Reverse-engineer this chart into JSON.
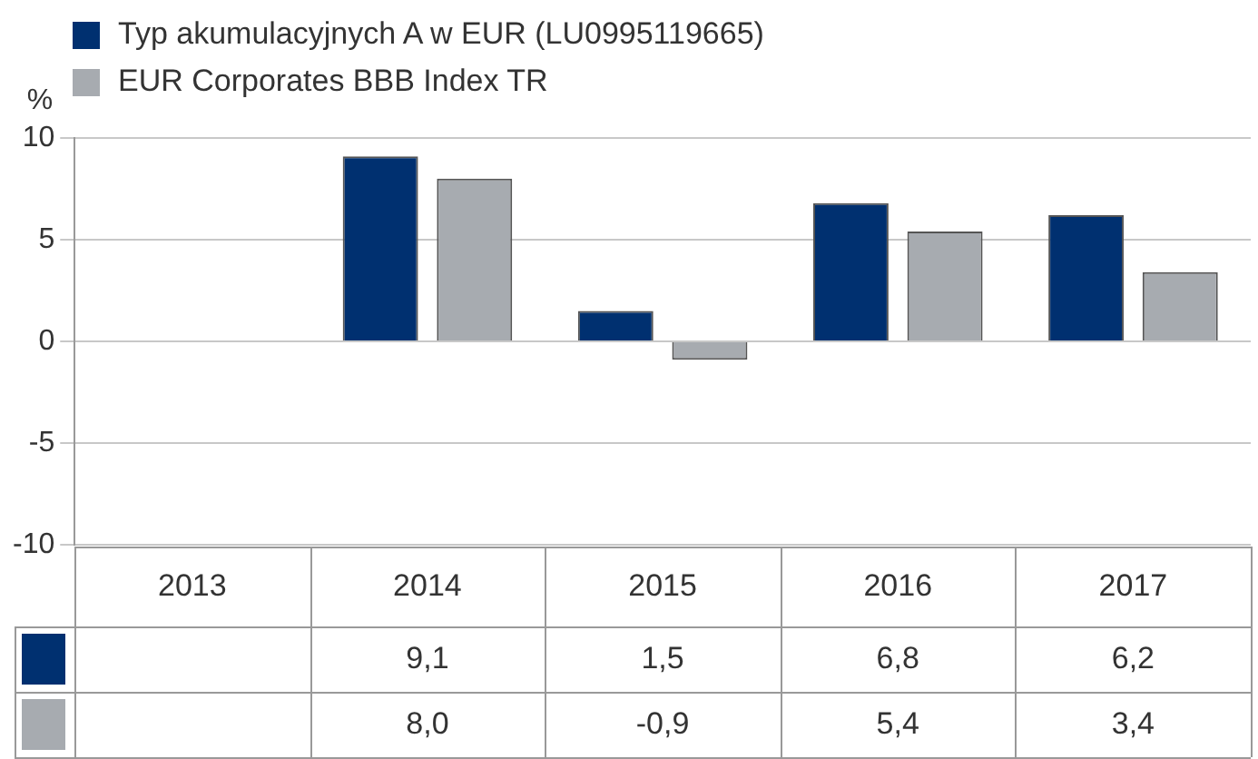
{
  "chart_data": {
    "type": "bar",
    "ylabel": "%",
    "categories": [
      "2013",
      "2014",
      "2015",
      "2016",
      "2017"
    ],
    "series": [
      {
        "name": "Typ akumulacyjnych A w EUR (LU0995119665)",
        "color": "#003070",
        "values": [
          null,
          9.1,
          1.5,
          6.8,
          6.2
        ],
        "value_labels": [
          null,
          "9,1",
          "1,5",
          "6,8",
          "6,2"
        ]
      },
      {
        "name": "EUR Corporates BBB Index TR",
        "color": "#a7abb0",
        "values": [
          null,
          8.0,
          -0.9,
          5.4,
          3.4
        ],
        "value_labels": [
          null,
          "8,0",
          "-0,9",
          "5,4",
          "3,4"
        ]
      }
    ],
    "ylim": [
      -10,
      10
    ],
    "yticks": [
      -10,
      -5,
      0,
      5,
      10
    ],
    "grid": "y",
    "legend": "top left"
  }
}
